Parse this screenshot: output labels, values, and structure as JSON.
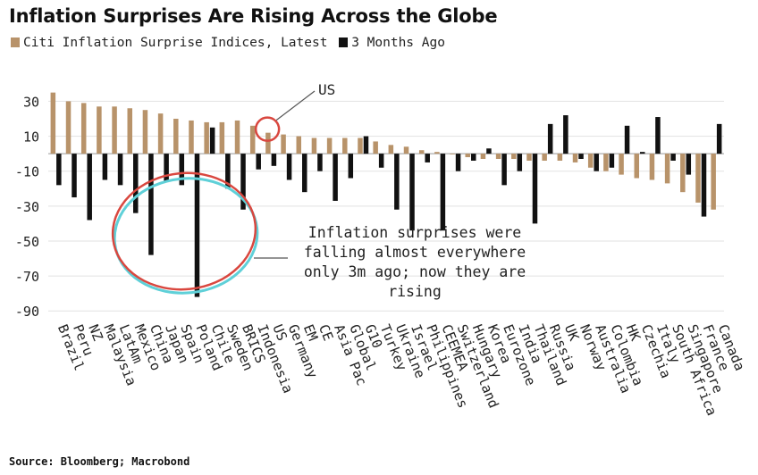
{
  "title": "Inflation Surprises Are Rising Across the Globe",
  "source": "Source: Bloomberg; Macrobond",
  "colors": {
    "latest": "#b8936a",
    "ago": "#111111",
    "circle_red": "#d9473f",
    "circle_teal": "#5fd0d8",
    "grid": "#e2e2e2"
  },
  "chart_data": {
    "type": "bar",
    "title": "Inflation Surprises Are Rising Across the Globe",
    "xlabel": "",
    "ylabel": "",
    "ylim": [
      -95,
      43
    ],
    "yticks": [
      30,
      10,
      -10,
      -30,
      -50,
      -70,
      -90
    ],
    "grid": true,
    "legend_position": "top-left",
    "categories": [
      "Brazil",
      "Peru",
      "NZ",
      "Malaysia",
      "LatAm",
      "Mexico",
      "China",
      "Japan",
      "Spain",
      "Poland",
      "Chile",
      "Sweden",
      "BRICS",
      "Indonesia",
      "US",
      "Germany",
      "EM",
      "CE",
      "Asia Pac",
      "Global",
      "G10",
      "Turkey",
      "Ukraine",
      "Israel",
      "Philippines",
      "CEEMEA",
      "Switzerland",
      "Hungary",
      "Korea",
      "Eurozone",
      "India",
      "Thailand",
      "Russia",
      "UK",
      "Norway",
      "Australia",
      "Colombia",
      "HK",
      "Czechia",
      "Italy",
      "South Africa",
      "Singapore",
      "France",
      "Canada"
    ],
    "series": [
      {
        "name": "Citi Inflation Surprise Indices, Latest",
        "values": [
          35,
          30,
          29,
          27,
          27,
          26,
          25,
          23,
          20,
          19,
          18,
          18,
          19,
          16,
          12,
          11,
          10,
          9,
          9,
          9,
          9,
          7,
          5,
          4,
          2,
          1,
          0,
          -2,
          -3,
          -3,
          -3,
          -4,
          -4,
          -4,
          -5,
          -8,
          -10,
          -12,
          -14,
          -15,
          -17,
          -22,
          -28,
          -32
        ]
      },
      {
        "name": "3 Months Ago",
        "values": [
          -18,
          -25,
          -38,
          -15,
          -18,
          -34,
          -58,
          -16,
          -18,
          -82,
          15,
          -20,
          -32,
          -9,
          -7,
          -15,
          -22,
          -10,
          -27,
          -14,
          10,
          -8,
          -32,
          -44,
          -5,
          -44,
          -10,
          -4,
          3,
          -18,
          -10,
          -40,
          17,
          22,
          -3,
          -10,
          -8,
          16,
          1,
          21,
          -4,
          -12,
          -36,
          17
        ]
      }
    ],
    "annotations": [
      {
        "text": "US",
        "target": "US"
      },
      {
        "text": "Inflation surprises were falling almost everywhere only 3m ago; now they are rising",
        "lines": [
          "Inflation surprises were",
          "falling almost everywhere",
          "only 3m ago; now they are",
          "rising"
        ]
      }
    ]
  }
}
